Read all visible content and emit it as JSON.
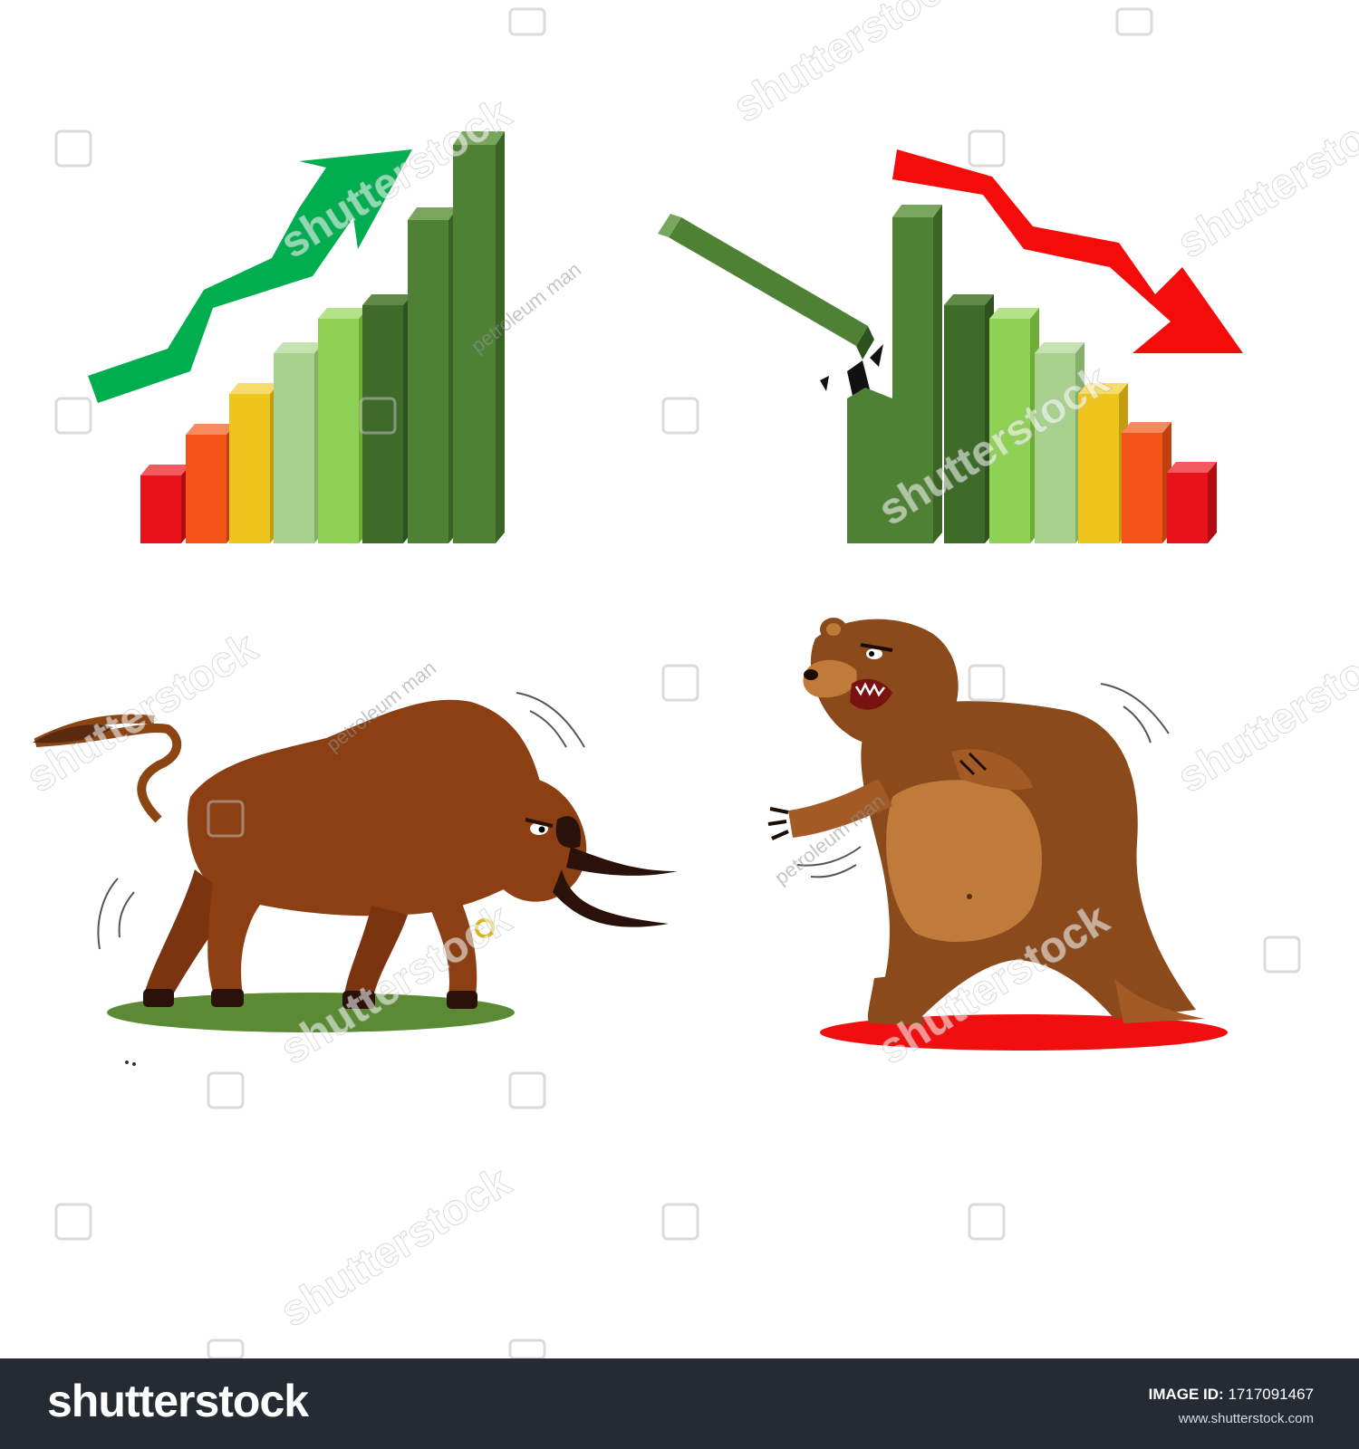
{
  "illustration": {
    "bull_market": {
      "trend_arrow_color": "#00ad4f",
      "bar_colors": [
        "#e8121a",
        "#f55419",
        "#efc51d",
        "#a8d18e",
        "#8fd154",
        "#3e6b2a",
        "#4f8134",
        "#4f8134"
      ],
      "animal": "bull",
      "ground_color": "#5a8a34"
    },
    "bear_market": {
      "trend_arrow_color": "#f60b0b",
      "bar_colors": [
        "#4f8134",
        "#4f8134",
        "#3e6b2a",
        "#8fd154",
        "#a8d18e",
        "#efc51d",
        "#f55419",
        "#e8121a"
      ],
      "animal": "bear",
      "ground_color": "#f10e0e"
    }
  },
  "watermarks": {
    "brand": "shutterstock",
    "contributor": "petroleum man"
  },
  "footer": {
    "logo": "shutterstock",
    "image_id_label": "IMAGE ID:",
    "image_id_value": "1717091467",
    "url": "www.shutterstock.com"
  }
}
